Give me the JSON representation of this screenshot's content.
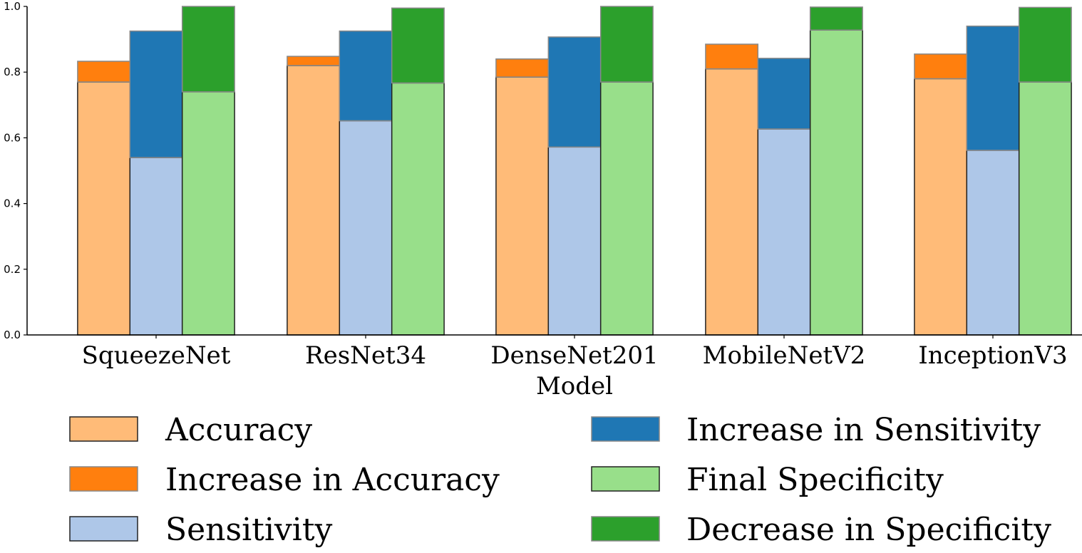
{
  "chart_data": {
    "type": "bar",
    "stacked_groups": true,
    "title": "",
    "xlabel": "Model",
    "ylabel": "",
    "ylim": [
      0,
      1.0
    ],
    "yticks": [
      "0.0",
      "0.2",
      "0.4",
      "0.6",
      "0.8",
      "1.0"
    ],
    "categories": [
      "SqueezeNet",
      "ResNet34",
      "DenseNet201",
      "MobileNetV2",
      "InceptionV3"
    ],
    "series": [
      {
        "name": "Accuracy",
        "stack": "accuracy",
        "color": "#ffbb78",
        "values": [
          0.77,
          0.82,
          0.785,
          0.81,
          0.78
        ]
      },
      {
        "name": "Increase in Accuracy",
        "stack": "accuracy",
        "color": "#ff7f0e",
        "values": [
          0.063,
          0.028,
          0.055,
          0.075,
          0.075
        ]
      },
      {
        "name": "Sensitivity",
        "stack": "sensitivity",
        "color": "#aec7e8",
        "values": [
          0.54,
          0.652,
          0.572,
          0.627,
          0.562
        ]
      },
      {
        "name": "Increase in Sensitivity",
        "stack": "sensitivity",
        "color": "#1f77b4",
        "values": [
          0.385,
          0.273,
          0.335,
          0.215,
          0.378
        ]
      },
      {
        "name": "Final Specificity",
        "stack": "specificity",
        "color": "#98df8a",
        "values": [
          0.74,
          0.767,
          0.77,
          0.928,
          0.77
        ]
      },
      {
        "name": "Decrease in Specificity",
        "stack": "specificity",
        "color": "#2ca02c",
        "values": [
          0.26,
          0.228,
          0.23,
          0.07,
          0.227
        ]
      }
    ],
    "legend_placement": "bottom",
    "grid": false
  }
}
